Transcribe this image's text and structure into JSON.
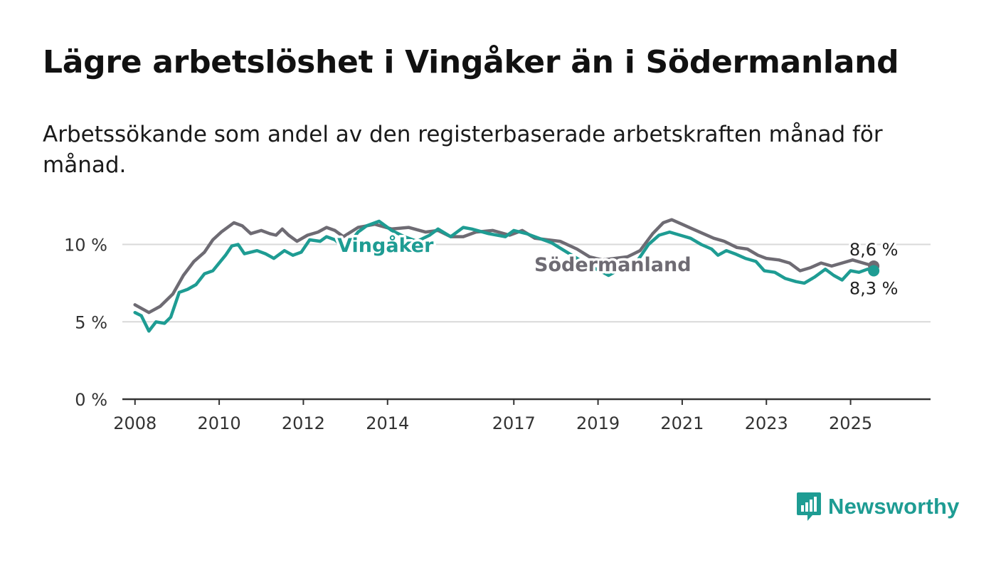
{
  "title": "Lägre arbetslöshet i Vingåker än i Södermanland",
  "subtitle": "Arbetssökande som andel av den registerbaserade arbetskraften månad för månad.",
  "brand": {
    "name": "Newsworthy",
    "icon": "newsworthy-logo-icon",
    "color": "#1e9c93"
  },
  "chart_data": {
    "type": "line",
    "ylim": [
      0,
      12
    ],
    "yticks": [
      0,
      5,
      10
    ],
    "ytick_labels": [
      "0 %",
      "5 %",
      "10 %"
    ],
    "xlim": [
      2007.7,
      2026.9
    ],
    "xticks": [
      2008,
      2010,
      2012,
      2014,
      2017,
      2019,
      2021,
      2023,
      2025
    ],
    "xtick_labels": [
      "2008",
      "2010",
      "2012",
      "2014",
      "2017",
      "2019",
      "2021",
      "2023",
      "2025"
    ],
    "grid": true,
    "series": [
      {
        "name": "Södermanland",
        "color": "#6e6b73",
        "end_label": "8,6 %",
        "points": [
          [
            2008.0,
            6.1
          ],
          [
            2008.33,
            5.6
          ],
          [
            2008.6,
            6.0
          ],
          [
            2008.9,
            6.8
          ],
          [
            2009.15,
            8.0
          ],
          [
            2009.4,
            8.9
          ],
          [
            2009.65,
            9.5
          ],
          [
            2009.85,
            10.3
          ],
          [
            2010.05,
            10.8
          ],
          [
            2010.35,
            11.4
          ],
          [
            2010.55,
            11.2
          ],
          [
            2010.75,
            10.7
          ],
          [
            2011.0,
            10.9
          ],
          [
            2011.2,
            10.7
          ],
          [
            2011.35,
            10.6
          ],
          [
            2011.5,
            11.0
          ],
          [
            2011.65,
            10.6
          ],
          [
            2011.85,
            10.2
          ],
          [
            2012.1,
            10.6
          ],
          [
            2012.35,
            10.8
          ],
          [
            2012.55,
            11.1
          ],
          [
            2012.75,
            10.9
          ],
          [
            2012.95,
            10.5
          ],
          [
            2013.3,
            11.1
          ],
          [
            2013.7,
            11.3
          ],
          [
            2014.1,
            11.0
          ],
          [
            2014.5,
            11.1
          ],
          [
            2014.9,
            10.8
          ],
          [
            2015.2,
            10.9
          ],
          [
            2015.5,
            10.5
          ],
          [
            2015.8,
            10.5
          ],
          [
            2016.1,
            10.8
          ],
          [
            2016.5,
            10.9
          ],
          [
            2016.9,
            10.6
          ],
          [
            2017.2,
            10.9
          ],
          [
            2017.5,
            10.4
          ],
          [
            2017.8,
            10.3
          ],
          [
            2018.1,
            10.2
          ],
          [
            2018.5,
            9.7
          ],
          [
            2018.8,
            9.2
          ],
          [
            2019.1,
            9.0
          ],
          [
            2019.4,
            9.1
          ],
          [
            2019.7,
            9.2
          ],
          [
            2020.0,
            9.6
          ],
          [
            2020.3,
            10.7
          ],
          [
            2020.55,
            11.4
          ],
          [
            2020.75,
            11.6
          ],
          [
            2021.0,
            11.3
          ],
          [
            2021.25,
            11.0
          ],
          [
            2021.5,
            10.7
          ],
          [
            2021.75,
            10.4
          ],
          [
            2022.0,
            10.2
          ],
          [
            2022.3,
            9.8
          ],
          [
            2022.55,
            9.7
          ],
          [
            2022.8,
            9.3
          ],
          [
            2023.0,
            9.1
          ],
          [
            2023.3,
            9.0
          ],
          [
            2023.55,
            8.8
          ],
          [
            2023.8,
            8.3
          ],
          [
            2024.05,
            8.5
          ],
          [
            2024.3,
            8.8
          ],
          [
            2024.55,
            8.6
          ],
          [
            2024.8,
            8.8
          ],
          [
            2025.05,
            9.0
          ],
          [
            2025.3,
            8.8
          ],
          [
            2025.55,
            8.6
          ]
        ]
      },
      {
        "name": "Vingåker",
        "color": "#1e9c93",
        "end_label": "8,3 %",
        "points": [
          [
            2008.0,
            5.6
          ],
          [
            2008.15,
            5.4
          ],
          [
            2008.33,
            4.4
          ],
          [
            2008.5,
            5.0
          ],
          [
            2008.7,
            4.9
          ],
          [
            2008.85,
            5.3
          ],
          [
            2009.05,
            6.9
          ],
          [
            2009.25,
            7.1
          ],
          [
            2009.45,
            7.4
          ],
          [
            2009.65,
            8.1
          ],
          [
            2009.85,
            8.3
          ],
          [
            2010.0,
            8.8
          ],
          [
            2010.15,
            9.3
          ],
          [
            2010.3,
            9.9
          ],
          [
            2010.45,
            10.0
          ],
          [
            2010.6,
            9.4
          ],
          [
            2010.9,
            9.6
          ],
          [
            2011.1,
            9.4
          ],
          [
            2011.3,
            9.1
          ],
          [
            2011.55,
            9.6
          ],
          [
            2011.75,
            9.3
          ],
          [
            2011.95,
            9.5
          ],
          [
            2012.15,
            10.3
          ],
          [
            2012.4,
            10.2
          ],
          [
            2012.55,
            10.5
          ],
          [
            2012.75,
            10.3
          ],
          [
            2012.95,
            9.8
          ],
          [
            2013.1,
            10.1
          ],
          [
            2013.3,
            10.8
          ],
          [
            2013.5,
            11.2
          ],
          [
            2013.8,
            11.5
          ],
          [
            2014.1,
            10.9
          ],
          [
            2014.4,
            10.5
          ],
          [
            2014.7,
            10.2
          ],
          [
            2015.0,
            10.6
          ],
          [
            2015.2,
            11.0
          ],
          [
            2015.5,
            10.5
          ],
          [
            2015.8,
            11.1
          ],
          [
            2016.0,
            11.0
          ],
          [
            2016.4,
            10.7
          ],
          [
            2016.8,
            10.5
          ],
          [
            2017.0,
            10.9
          ],
          [
            2017.3,
            10.7
          ],
          [
            2017.6,
            10.4
          ],
          [
            2017.9,
            10.1
          ],
          [
            2018.2,
            9.6
          ],
          [
            2018.5,
            9.1
          ],
          [
            2018.8,
            8.6
          ],
          [
            2019.05,
            8.3
          ],
          [
            2019.25,
            8.0
          ],
          [
            2019.45,
            8.3
          ],
          [
            2019.7,
            8.5
          ],
          [
            2019.95,
            9.0
          ],
          [
            2020.2,
            10.0
          ],
          [
            2020.45,
            10.6
          ],
          [
            2020.7,
            10.8
          ],
          [
            2020.95,
            10.6
          ],
          [
            2021.2,
            10.4
          ],
          [
            2021.45,
            10.0
          ],
          [
            2021.7,
            9.7
          ],
          [
            2021.85,
            9.3
          ],
          [
            2022.05,
            9.6
          ],
          [
            2022.25,
            9.4
          ],
          [
            2022.5,
            9.1
          ],
          [
            2022.75,
            8.9
          ],
          [
            2022.95,
            8.3
          ],
          [
            2023.2,
            8.2
          ],
          [
            2023.45,
            7.8
          ],
          [
            2023.7,
            7.6
          ],
          [
            2023.9,
            7.5
          ],
          [
            2024.15,
            7.9
          ],
          [
            2024.4,
            8.4
          ],
          [
            2024.6,
            8.0
          ],
          [
            2024.8,
            7.7
          ],
          [
            2025.0,
            8.3
          ],
          [
            2025.2,
            8.2
          ],
          [
            2025.4,
            8.4
          ],
          [
            2025.55,
            8.3
          ]
        ]
      }
    ]
  }
}
